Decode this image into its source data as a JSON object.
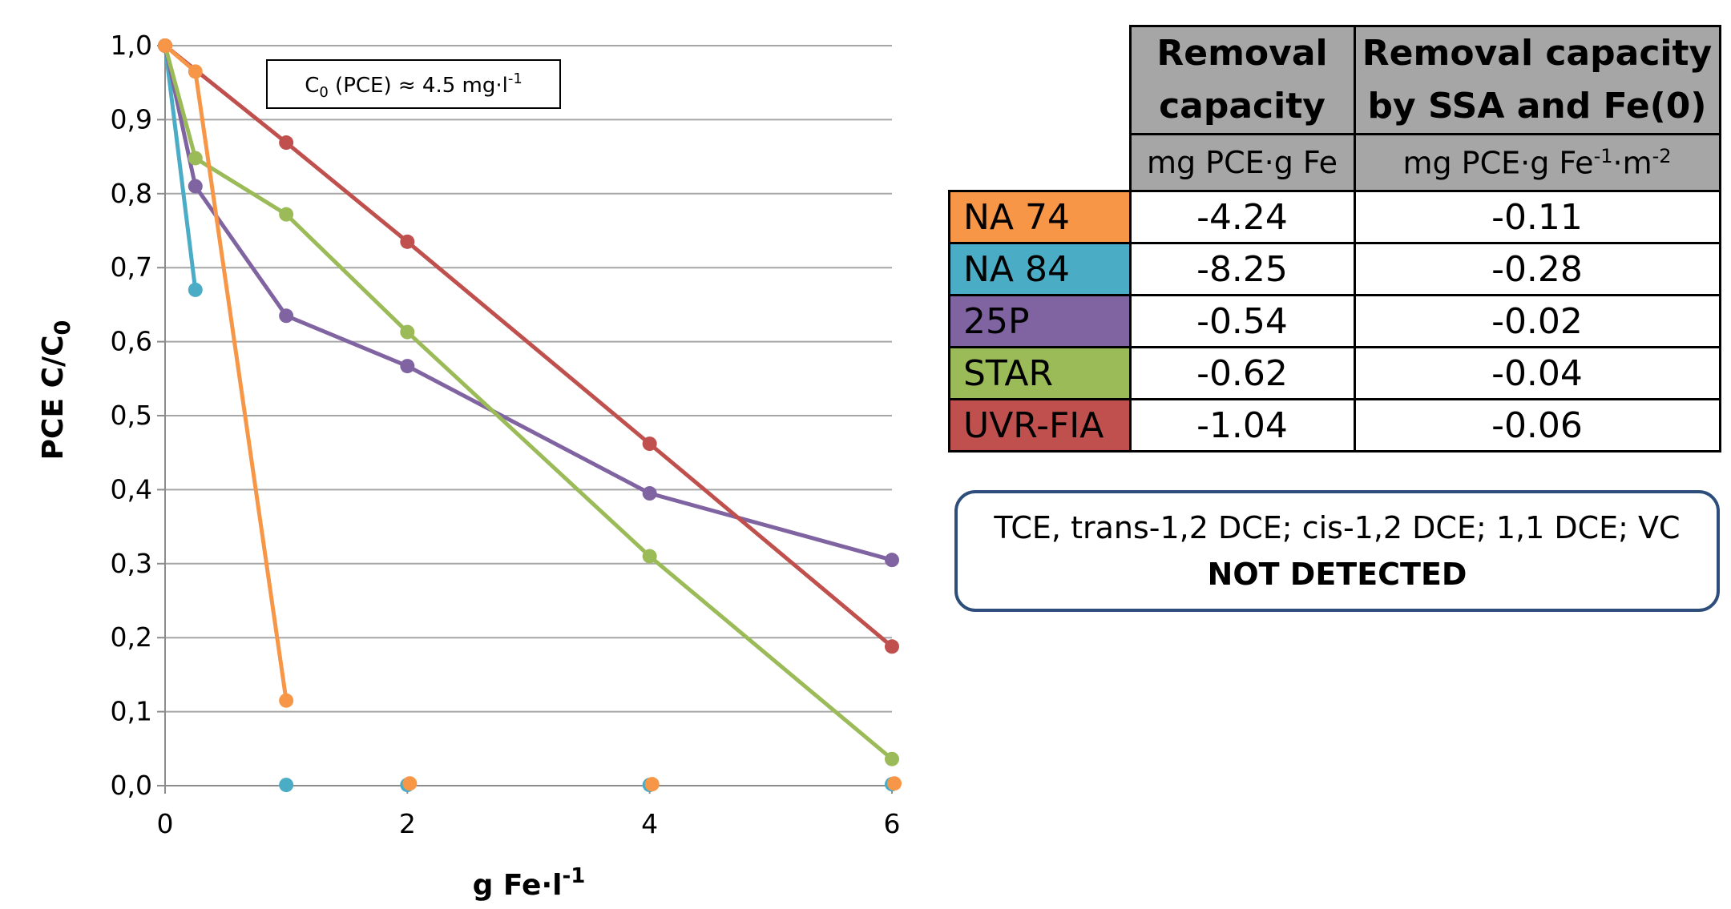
{
  "chart_data": {
    "type": "line",
    "xlabel_main": "g Fe·l",
    "xlabel_sup": "-1",
    "ylabel_main": "PCE C/C",
    "ylabel_sub": "0",
    "xlim": [
      0,
      6
    ],
    "ylim": [
      0,
      1
    ],
    "x_ticks": [
      0,
      2,
      4,
      6
    ],
    "x_tick_labels": [
      "0",
      "2",
      "4",
      "6"
    ],
    "y_ticks": [
      0,
      0.1,
      0.2,
      0.3,
      0.4,
      0.5,
      0.6,
      0.7,
      0.8,
      0.9,
      1.0
    ],
    "y_tick_labels": [
      "0,0",
      "0,1",
      "0,2",
      "0,3",
      "0,4",
      "0,5",
      "0,6",
      "0,7",
      "0,8",
      "0,9",
      "1,0"
    ],
    "grid": "horizontal",
    "annotation": {
      "prefix": "C",
      "sub": "0",
      "mid": " (PCE) ≈ 4.5 mg·l",
      "sup": "-1"
    },
    "series": [
      {
        "name": "NA 74",
        "color": "#f79646",
        "connected": [
          [
            0,
            1.0
          ],
          [
            0.25,
            0.965
          ],
          [
            1,
            0.115
          ]
        ],
        "isolated": [
          [
            2.02,
            0.003
          ],
          [
            4.02,
            0.002
          ],
          [
            6.02,
            0.003
          ]
        ]
      },
      {
        "name": "NA 84",
        "color": "#4bacc6",
        "connected": [
          [
            0,
            1.0
          ],
          [
            0.25,
            0.67
          ]
        ],
        "isolated": [
          [
            1,
            0.001
          ],
          [
            2,
            0.001
          ],
          [
            4,
            0.001
          ],
          [
            6,
            0.002
          ]
        ]
      },
      {
        "name": "25P",
        "color": "#8064a2",
        "connected": [
          [
            0,
            1.0
          ],
          [
            0.25,
            0.81
          ],
          [
            1,
            0.635
          ],
          [
            2,
            0.567
          ],
          [
            4,
            0.395
          ],
          [
            6,
            0.305
          ]
        ],
        "isolated": []
      },
      {
        "name": "STAR",
        "color": "#9bbb59",
        "connected": [
          [
            0,
            1.0
          ],
          [
            0.25,
            0.848
          ],
          [
            1,
            0.772
          ],
          [
            2,
            0.613
          ],
          [
            4,
            0.31
          ],
          [
            6,
            0.036
          ]
        ],
        "isolated": []
      },
      {
        "name": "UVR-FIA",
        "color": "#c0504d",
        "connected": [
          [
            0,
            1.0
          ],
          [
            1,
            0.869
          ],
          [
            2,
            0.735
          ],
          [
            4,
            0.462
          ],
          [
            6,
            0.188
          ]
        ],
        "isolated": []
      }
    ]
  },
  "table": {
    "header_col1": "Removal capacity",
    "header_col2": "Removal capacity by SSA and Fe(0)",
    "unit_col1": "mg PCE·g Fe",
    "unit_col2_a": "mg PCE·g Fe",
    "unit_col2_sup1": "-1",
    "unit_col2_b": "·m",
    "unit_col2_sup2": "-2",
    "rows": [
      {
        "name": "NA 74",
        "color": "#f79646",
        "capacity": "-4.24",
        "capacity_ssa": "-0.11"
      },
      {
        "name": "NA 84",
        "color": "#4bacc6",
        "capacity": "-8.25",
        "capacity_ssa": "-0.28"
      },
      {
        "name": "25P",
        "color": "#8064a2",
        "capacity": "-0.54",
        "capacity_ssa": "-0.02"
      },
      {
        "name": "STAR",
        "color": "#9bbb59",
        "capacity": "-0.62",
        "capacity_ssa": "-0.04"
      },
      {
        "name": "UVR-FIA",
        "color": "#c0504d",
        "capacity": "-1.04",
        "capacity_ssa": "-0.06"
      }
    ]
  },
  "note": {
    "line1": "TCE, trans-1,2 DCE; cis-1,2 DCE; 1,1 DCE; VC",
    "line2": "NOT DETECTED"
  }
}
